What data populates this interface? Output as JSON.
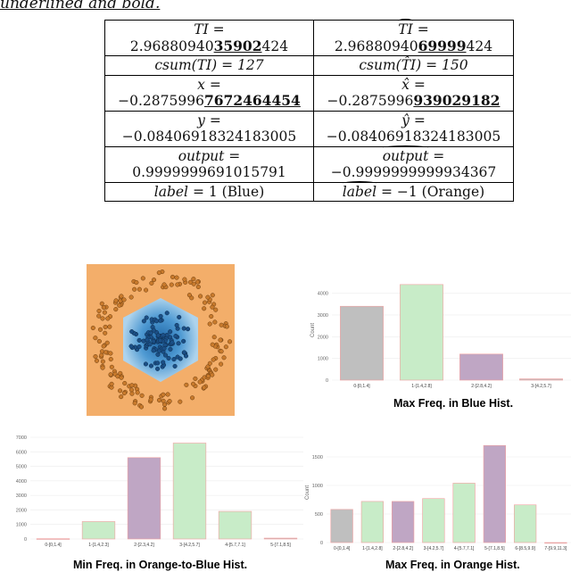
{
  "top_fragment": "underlined and bold.",
  "table": {
    "rows": [
      {
        "left": {
          "label": "TI =",
          "plain": "2.96880940",
          "bold": "35902",
          "tail": "424"
        },
        "right": {
          "label_hat": "TI",
          "label_rest": " =",
          "plain": "2.96880940",
          "bold": "69999",
          "tail": "424"
        }
      },
      {
        "left": {
          "line": "csum(TI) = 127"
        },
        "right": {
          "line": "csum(T̂I) = 150"
        }
      },
      {
        "left": {
          "label": "x =",
          "plain": "−0.2875996",
          "bold": "7672464454",
          "tail": ""
        },
        "right": {
          "label": "x̂ =",
          "plain": "−0.2875996",
          "bold": "939029182",
          "tail": ""
        }
      },
      {
        "left": {
          "label": "y =",
          "plain": "−0.08406918324183005",
          "bold": "",
          "tail": ""
        },
        "right": {
          "label": "ŷ =",
          "plain": "−0.08406918324183005",
          "bold": "",
          "tail": ""
        }
      },
      {
        "left": {
          "label": "output =",
          "plain": "0.9999999691015791",
          "bold": "",
          "tail": ""
        },
        "right": {
          "label_hat": "output",
          "label_rest": " =",
          "plain": "−0.9999999999934367",
          "bold": "",
          "tail": ""
        }
      },
      {
        "left": {
          "line_it": "label",
          "line_rest": " = 1 (Blue)"
        },
        "right": {
          "line_hat": "label",
          "line_rest": " = −1 (Orange)"
        }
      }
    ]
  },
  "colors": {
    "orange": "#f3ae6a",
    "blue_dark": "#2f7fc1",
    "blue_light": "#9ccbe8",
    "gray": "#bfbfbf",
    "green": "#c8ecc8",
    "purple": "#bfa6c4"
  },
  "chart_data": [
    {
      "type": "scatter",
      "title": "",
      "description_visible": "decision boundary scatter",
      "classes": [
        "Blue",
        "Orange"
      ]
    },
    {
      "type": "bar",
      "title": "Max Freq. in Blue Hist.",
      "categories": [
        "0-[0,1.4]",
        "1-[1.4,2.8]",
        "2-[2.8,4.2]",
        "3-[4.2,5.7]"
      ],
      "values": [
        3400,
        4400,
        1200,
        60
      ],
      "yticks": [
        "0",
        "1000",
        "2000",
        "3000",
        "4000"
      ],
      "ylabel": "Count",
      "ylim": [
        0,
        4600
      ]
    },
    {
      "type": "bar",
      "title": "Min Freq. in Orange-to-Blue Hist.",
      "categories": [
        "0-[0,1.4]",
        "1-[1.4,2.3]",
        "2-[2.3,4.2]",
        "3-[4.2,5.7]",
        "4-[5.7,7.1]",
        "5-[7.1,8.5]"
      ],
      "values": [
        20,
        1200,
        5600,
        6600,
        1900,
        60
      ],
      "yticks": [
        "0",
        "1000",
        "2000",
        "3000",
        "4000",
        "5000",
        "6000",
        "7000"
      ],
      "ylabel": "Count",
      "ylim": [
        0,
        7000
      ]
    },
    {
      "type": "bar",
      "title": "Max Freq. in Orange Hist.",
      "categories": [
        "0-[0,1.4]",
        "1-[1.4,2.8]",
        "2-[2.8,4.2]",
        "3-[4.2,5.7]",
        "4-[5.7,7.1]",
        "5-[7.1,8.5]",
        "6-[8.5,9.9]",
        "7-[9.9,11.3]"
      ],
      "values": [
        580,
        720,
        720,
        770,
        1040,
        1700,
        660,
        0
      ],
      "yticks": [
        "0",
        "500",
        "1000",
        "1500"
      ],
      "ylabel": "Count",
      "ylim": [
        0,
        1750
      ]
    }
  ]
}
